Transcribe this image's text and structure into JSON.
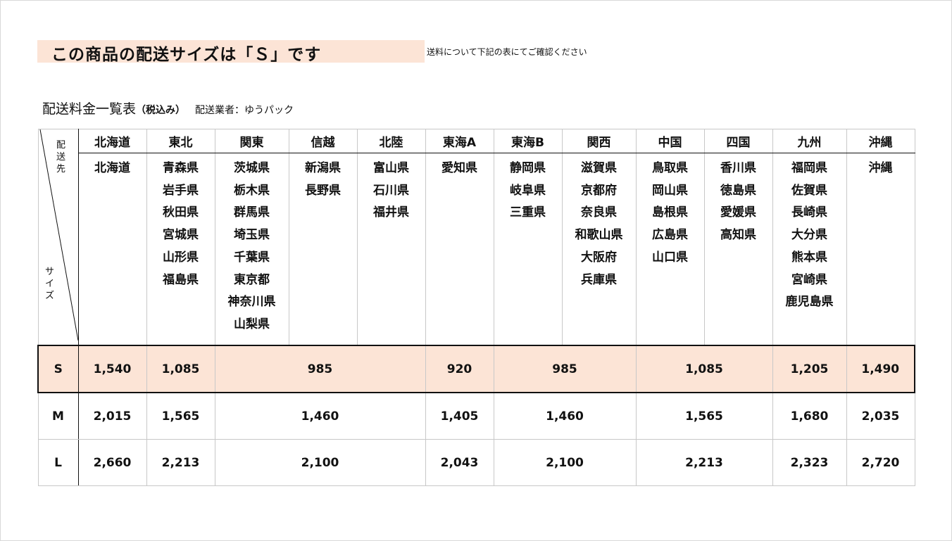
{
  "banner": {
    "title": "この商品の配送サイズは「Ｓ」です",
    "note": "送料について下記の表にてご確認ください",
    "highlight_color": "#fce4d6"
  },
  "section": {
    "title": "配送料金一覧表",
    "tax": "（税込み）",
    "carrier": "配送業者：ゆうパック"
  },
  "table": {
    "corner": {
      "top": "配送先",
      "bottom": "サイズ"
    },
    "regions": [
      "北海道",
      "東北",
      "関東",
      "信越",
      "北陸",
      "東海A",
      "東海B",
      "関西",
      "中国",
      "四国",
      "九州",
      "沖縄"
    ],
    "prefectures": [
      "北海道",
      "青森県\n岩手県\n秋田県\n宮城県\n山形県\n福島県",
      "茨城県\n栃木県\n群馬県\n埼玉県\n千葉県\n東京都\n神奈川県\n山梨県",
      "新潟県\n長野県",
      "富山県\n石川県\n福井県",
      "愛知県",
      "静岡県\n岐阜県\n三重県",
      "滋賀県\n京都府\n奈良県\n和歌山県\n大阪府\n兵庫県",
      "鳥取県\n岡山県\n島根県\n広島県\n山口県",
      "香川県\n徳島県\n愛媛県\n高知県",
      "福岡県\n佐賀県\n長崎県\n大分県\n熊本県\n宮崎県\n鹿児島県",
      "沖縄"
    ],
    "rates": [
      {
        "size": "S",
        "cells": [
          "1,540",
          "1,085",
          "985",
          "920",
          "985",
          "1,085",
          "1,205",
          "1,490"
        ],
        "selected": true
      },
      {
        "size": "M",
        "cells": [
          "2,015",
          "1,565",
          "1,460",
          "1,405",
          "1,460",
          "1,565",
          "1,680",
          "2,035"
        ]
      },
      {
        "size": "L",
        "cells": [
          "2,660",
          "2,213",
          "2,100",
          "2,043",
          "2,100",
          "2,213",
          "2,323",
          "2,720"
        ]
      }
    ]
  }
}
